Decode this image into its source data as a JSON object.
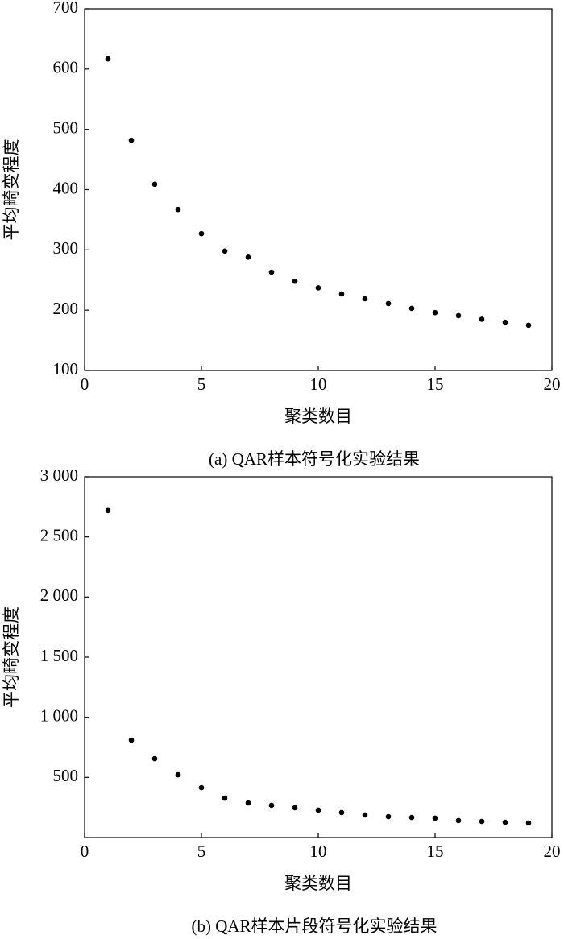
{
  "chart_data": [
    {
      "type": "scatter",
      "caption": "(a) QAR样本符号化实验结果",
      "x_label": "聚类数目",
      "y_label": "平均畸变程度",
      "color": "#000000",
      "x": [
        1,
        2,
        3,
        4,
        5,
        6,
        7,
        8,
        9,
        10,
        11,
        12,
        13,
        14,
        15,
        16,
        17,
        18,
        19
      ],
      "values": [
        617,
        482,
        409,
        367,
        327,
        298,
        288,
        263,
        248,
        237,
        227,
        219,
        211,
        203,
        196,
        191,
        185,
        180,
        175
      ],
      "xlim": [
        0,
        20
      ],
      "xticks": [
        0,
        5,
        10,
        15,
        20
      ],
      "ylim": [
        100,
        700
      ],
      "yticks": [
        100,
        200,
        300,
        400,
        500,
        600,
        700
      ]
    },
    {
      "type": "scatter",
      "caption": "(b) QAR样本片段符号化实验结果",
      "x_label": "聚类数目",
      "y_label": "平均畸变程度",
      "color": "#000000",
      "x": [
        1,
        2,
        3,
        4,
        5,
        6,
        7,
        8,
        9,
        10,
        11,
        12,
        13,
        14,
        15,
        16,
        17,
        18,
        19
      ],
      "values": [
        2720,
        810,
        656,
        522,
        415,
        328,
        288,
        268,
        248,
        228,
        208,
        188,
        174,
        167,
        161,
        141,
        134,
        127,
        121
      ],
      "xlim": [
        0,
        20
      ],
      "xticks": [
        0,
        5,
        10,
        15,
        20
      ],
      "ylim": [
        0,
        3000
      ],
      "yticks": [
        500,
        {
          "value": 1000,
          "label": "1 000"
        },
        {
          "value": 1500,
          "label": "1 500"
        },
        {
          "value": 2000,
          "label": "2 000"
        },
        {
          "value": 2500,
          "label": "2 500"
        },
        {
          "value": 3000,
          "label": "3 000"
        }
      ]
    }
  ]
}
